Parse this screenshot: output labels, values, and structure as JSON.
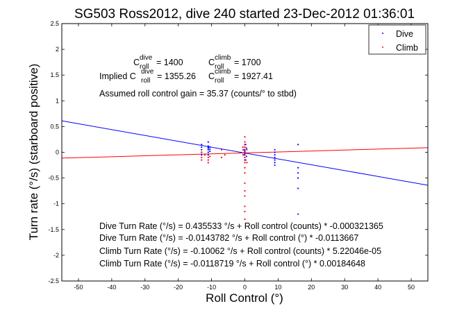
{
  "chart_data": {
    "type": "scatter",
    "title": "SG503 Ross2012, dive 240 started 23-Dec-2012 01:36:01",
    "xlabel": "Roll Control (°)",
    "ylabel": "Turn rate (°/s) (starboard positive)",
    "xlim": [
      -55,
      55
    ],
    "ylim": [
      -2.5,
      2.5
    ],
    "x_ticks": [
      -50,
      -40,
      -30,
      -20,
      -10,
      0,
      10,
      20,
      30,
      40,
      50
    ],
    "y_ticks": [
      -2.5,
      -2,
      -1.5,
      -1,
      -0.5,
      0,
      0.5,
      1,
      1.5,
      2,
      2.5
    ],
    "grid": false,
    "legend_position": "top-right",
    "colors": {
      "dive": "#0000ff",
      "climb": "#ff0000"
    },
    "series": [
      {
        "name": "Dive",
        "kind": "points",
        "points": [
          [
            -13,
            0.1
          ],
          [
            -13,
            0.05
          ],
          [
            -13,
            0.0
          ],
          [
            -13,
            0.15
          ],
          [
            -13,
            -0.05
          ],
          [
            -11,
            0.2
          ],
          [
            -11,
            0.1
          ],
          [
            -11,
            0.05
          ],
          [
            -11,
            0.0
          ],
          [
            -11,
            -0.05
          ],
          [
            -11,
            0.12
          ],
          [
            -11,
            0.08
          ],
          [
            -10.5,
            0.06
          ],
          [
            -10.5,
            0.02
          ],
          [
            -10.5,
            0.1
          ],
          [
            0,
            0.1
          ],
          [
            0,
            0.05
          ],
          [
            0,
            0.0
          ],
          [
            0,
            -0.05
          ],
          [
            0,
            -0.1
          ],
          [
            0,
            0.15
          ],
          [
            0,
            -0.15
          ],
          [
            0,
            0.02
          ],
          [
            0,
            -0.02
          ],
          [
            0.5,
            0.08
          ],
          [
            0.5,
            -0.08
          ],
          [
            -0.5,
            0.05
          ],
          [
            -0.5,
            -0.05
          ],
          [
            9,
            0.0
          ],
          [
            9,
            -0.05
          ],
          [
            9,
            -0.1
          ],
          [
            9,
            -0.15
          ],
          [
            9,
            -0.2
          ],
          [
            9,
            0.05
          ],
          [
            9,
            -0.25
          ],
          [
            16,
            -0.3
          ],
          [
            16,
            -0.4
          ],
          [
            16,
            -0.5
          ],
          [
            16,
            -0.7
          ],
          [
            16,
            -1.2
          ],
          [
            16,
            0.15
          ]
        ]
      },
      {
        "name": "Climb",
        "kind": "points",
        "points": [
          [
            -13,
            0.0
          ],
          [
            -13,
            -0.1
          ],
          [
            -13,
            -0.15
          ],
          [
            -12,
            -0.05
          ],
          [
            -11,
            -0.1
          ],
          [
            -11,
            -0.15
          ],
          [
            -11,
            -0.2
          ],
          [
            -10.5,
            -0.08
          ],
          [
            -7,
            0.05
          ],
          [
            -7,
            -0.1
          ],
          [
            -6,
            -0.05
          ],
          [
            0,
            0.3
          ],
          [
            0,
            0.2
          ],
          [
            0,
            0.1
          ],
          [
            0,
            0.0
          ],
          [
            0,
            -0.1
          ],
          [
            0,
            -0.2
          ],
          [
            0,
            -0.3
          ],
          [
            0,
            -0.4
          ],
          [
            0,
            -0.6
          ],
          [
            0,
            -0.75
          ],
          [
            0,
            -0.85
          ],
          [
            0,
            -1.05
          ],
          [
            0,
            -1.15
          ],
          [
            0,
            -1.3
          ],
          [
            0.3,
            0.15
          ],
          [
            0.3,
            -0.15
          ],
          [
            -0.3,
            0.05
          ],
          [
            -0.3,
            -0.05
          ],
          [
            0.6,
            0.05
          ],
          [
            0.6,
            -0.2
          ],
          [
            -0.6,
            0.1
          ]
        ]
      }
    ],
    "fit_lines": [
      {
        "name": "Dive fit",
        "color": "#0000ff",
        "intercept": -0.0143782,
        "slope": -0.0113667
      },
      {
        "name": "Climb fit",
        "color": "#ff0000",
        "intercept": -0.0118719,
        "slope": 0.00184648
      }
    ],
    "annotations": {
      "c_dive_prefix": "C",
      "c_dive_sup": "dive",
      "c_dive_sub": "roll",
      "c_dive_value": " = 1400",
      "c_climb_prefix": "C",
      "c_climb_sup": "climb",
      "c_climb_sub": "roll",
      "c_climb_value": " = 1700",
      "implied_label": "Implied C",
      "implied_dive_sup": "dive",
      "implied_dive_sub": "roll",
      "implied_dive_value": " = 1355.26",
      "implied_climb_prefix": "C",
      "implied_climb_sup": "climb",
      "implied_climb_sub": "roll",
      "implied_climb_value": " = 1927.41",
      "gain": "Assumed roll control gain = 35.37 (counts/° to stbd)",
      "fits": [
        "Dive Turn Rate (°/s) = 0.435533 °/s + Roll control (counts) * -0.000321365",
        "Dive Turn Rate (°/s) = -0.0143782 °/s + Roll control (°) * -0.0113667",
        "Climb Turn Rate (°/s) = -0.10062 °/s + Roll control (counts) * 5.22046e-05",
        "Climb Turn Rate (°/s) = -0.0118719 °/s + Roll control (°) * 0.00184648"
      ]
    }
  }
}
